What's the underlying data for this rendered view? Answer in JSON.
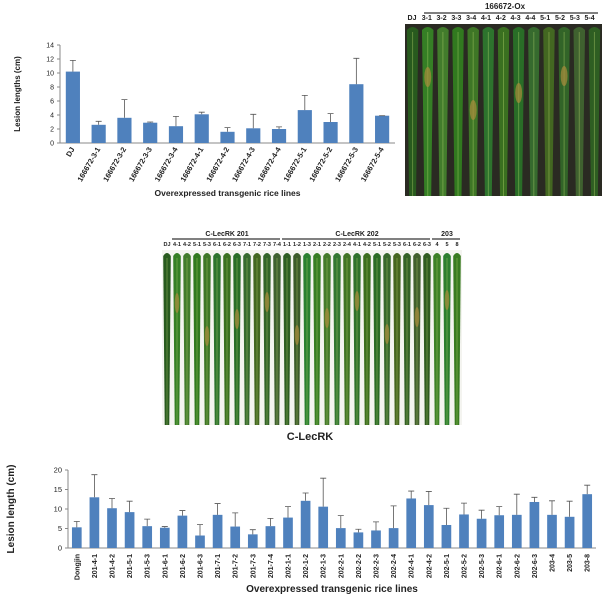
{
  "chart_data": [
    {
      "type": "bar",
      "y_label": "Lesion lengths (cm)",
      "x_label": "Overexpressed transgenic rice lines",
      "categories": [
        "DJ",
        "166672-3-1",
        "166672-3-2",
        "166672-3-3",
        "166672-3-4",
        "166672-4-1",
        "166672-4-2",
        "166672-4-3",
        "166672-4-4",
        "166672-5-1",
        "166672-5-2",
        "166672-5-3",
        "166672-5-4"
      ],
      "values": [
        10.2,
        2.6,
        3.6,
        2.9,
        2.4,
        4.1,
        1.6,
        2.1,
        2.0,
        4.7,
        3.0,
        8.4,
        3.9
      ],
      "errors": [
        1.6,
        0.5,
        2.6,
        0.1,
        1.4,
        0.3,
        0.6,
        2.0,
        0.3,
        2.1,
        1.2,
        3.7,
        0
      ],
      "color": "#4f81bd",
      "ylim": [
        0,
        14
      ],
      "yticks": [
        0,
        2,
        4,
        6,
        8,
        10,
        12,
        14
      ],
      "grid": false
    },
    {
      "type": "bar",
      "y_label": "Lesion length (cm)",
      "x_label": "Overexpressed transgenic rice lines",
      "categories": [
        "Dongjin",
        "201-4-1",
        "201-4-2",
        "201-5-1",
        "201-5-3",
        "201-6-1",
        "201-6-2",
        "201-6-3",
        "201-7-1",
        "201-7-2",
        "201-7-3",
        "201-7-4",
        "202-1-1",
        "202-1-2",
        "202-1-3",
        "202-2-1",
        "202-2-2",
        "202-2-3",
        "202-2-4",
        "202-4-1",
        "202-4-2",
        "202-5-1",
        "202-5-2",
        "202-5-3",
        "202-6-1",
        "202-6-2",
        "202-6-3",
        "203-4",
        "203-5",
        "203-8"
      ],
      "values": [
        5.3,
        13,
        10.2,
        9.2,
        5.6,
        5.2,
        8.3,
        3.2,
        8.5,
        5.5,
        3.5,
        5.6,
        7.8,
        12.1,
        10.6,
        5.1,
        4.0,
        4.5,
        5.1,
        12.7,
        11.0,
        5.9,
        8.6,
        7.5,
        8.4,
        8.5,
        11.8,
        8.5,
        8.0,
        13.8
      ],
      "errors": [
        1.5,
        5.8,
        2.5,
        2.8,
        1.8,
        0.3,
        1.3,
        2.8,
        2.9,
        3.5,
        1.2,
        2.0,
        2.8,
        2.0,
        7.3,
        3.2,
        0.8,
        2.2,
        5.7,
        1.9,
        3.5,
        4.3,
        2.9,
        2.2,
        2.2,
        5.3,
        1.2,
        3.6,
        4.0,
        2.3
      ],
      "color": "#4f81bd",
      "ylim": [
        0,
        20
      ],
      "yticks": [
        0,
        5,
        10,
        15,
        20
      ],
      "grid": false
    }
  ],
  "photos": [
    {
      "title": "166672-Ox",
      "labels": [
        "DJ",
        "3-1",
        "3-2",
        "3-3",
        "3-4",
        "4-1",
        "4-2",
        "4-3",
        "4-4",
        "5-1",
        "5-2",
        "5-3",
        "5-4"
      ]
    },
    {
      "groups": [
        "C-LecRK 201",
        "C-LecRK 202",
        "203"
      ],
      "caption": "C-LecRK",
      "labels": [
        "DJ",
        "4-1",
        "4-2",
        "5-1",
        "5-3",
        "6-1",
        "6-2",
        "6-3",
        "7-1",
        "7-2",
        "7-3",
        "7-4",
        "1-1",
        "1-2",
        "1-3",
        "2-1",
        "2-2",
        "2-3",
        "2-4",
        "4-1",
        "4-2",
        "5-1",
        "5-2",
        "5-3",
        "6-1",
        "6-2",
        "6-3",
        "4",
        "5",
        "8"
      ]
    }
  ]
}
